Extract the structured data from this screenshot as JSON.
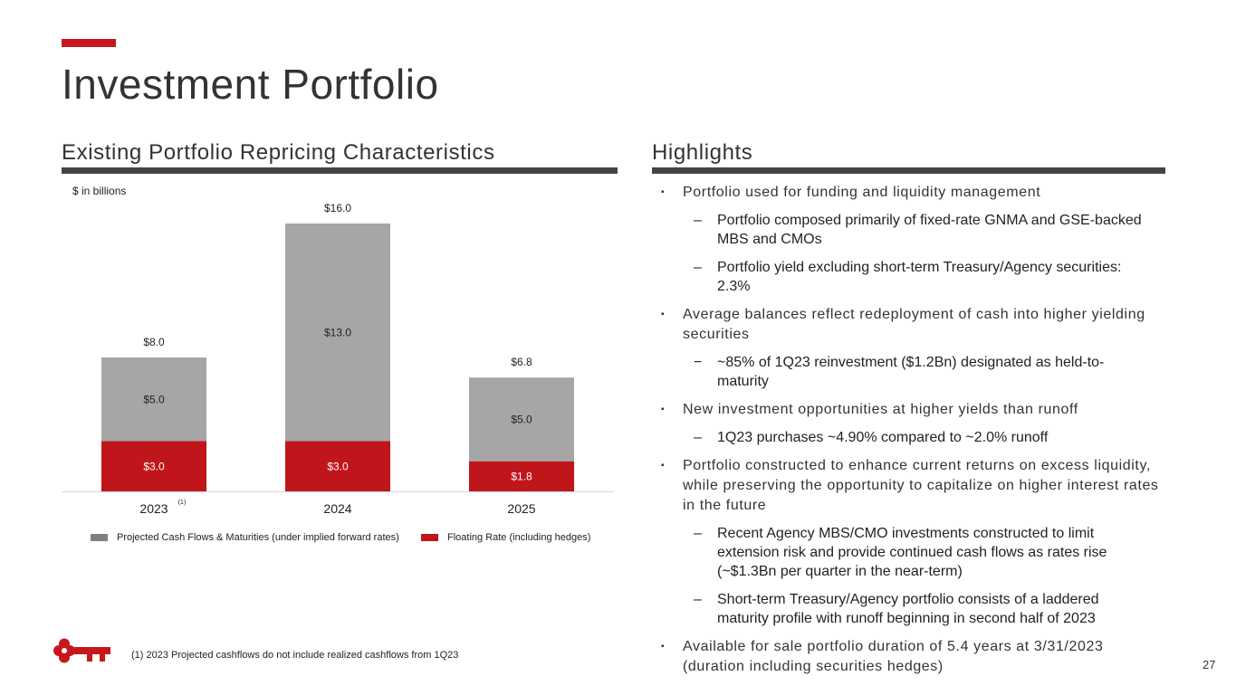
{
  "page": {
    "title": "Investment Portfolio",
    "page_number": "27",
    "footnote": "(1) 2023 Projected cashflows do not include realized cashflows from 1Q23",
    "accent_color": "#c8161d"
  },
  "chart_section": {
    "title": "Existing Portfolio Repricing Characteristics",
    "units": "$ in billions"
  },
  "chart_data": {
    "type": "bar",
    "stacked": true,
    "categories": [
      "2023",
      "2024",
      "2025"
    ],
    "category_footnotes": [
      "(1)",
      "",
      ""
    ],
    "series": [
      {
        "name": "Floating Rate (including hedges)",
        "color": "#c0161b",
        "values": [
          3.0,
          3.0,
          1.8
        ],
        "labels": [
          "$3.0",
          "$3.0",
          "$1.8"
        ]
      },
      {
        "name": "Projected Cash Flows & Maturities (under implied forward rates)",
        "color": "#a6a6a6",
        "values": [
          5.0,
          13.0,
          5.0
        ],
        "labels": [
          "$5.0",
          "$13.0",
          "$5.0"
        ]
      }
    ],
    "totals": [
      8.0,
      16.0,
      6.8
    ],
    "total_labels": [
      "$8.0",
      "$16.0",
      "$6.8"
    ],
    "ylim": [
      0,
      16
    ],
    "legend": [
      {
        "label": "Projected Cash Flows & Maturities (under implied forward rates)",
        "color": "#808080"
      },
      {
        "label": "Floating Rate (including hedges)",
        "color": "#c0161b"
      }
    ]
  },
  "highlights": {
    "title": "Highlights",
    "items": [
      {
        "text": "Portfolio used for funding and liquidity management",
        "subs": [
          "Portfolio composed primarily of fixed-rate GNMA and GSE-backed MBS and CMOs",
          "Portfolio yield excluding short-term Treasury/Agency securities: 2.3%"
        ]
      },
      {
        "text": "Average balances reflect redeployment of cash into higher yielding securities",
        "subs": [
          "~85% of 1Q23 reinvestment ($1.2Bn) designated as held-to-maturity"
        ]
      },
      {
        "text": "New investment opportunities at higher yields than runoff",
        "subs": [
          "1Q23 purchases ~4.90% compared to ~2.0% runoff"
        ]
      },
      {
        "text": "Portfolio constructed to enhance current returns on excess liquidity, while preserving the opportunity to capitalize on higher interest rates in the future",
        "subs": [
          "Recent Agency MBS/CMO investments constructed to limit extension risk and provide continued cash flows as rates rise (~$1.3Bn per quarter in the near-term)",
          "Short-term Treasury/Agency portfolio consists of a laddered maturity profile with runoff beginning in second half of 2023"
        ]
      },
      {
        "text": "Available for sale portfolio duration of 5.4 years at 3/31/2023 (duration including securities hedges)",
        "subs": []
      }
    ]
  },
  "logo": {
    "icon": "key-icon",
    "color": "#c8161d"
  }
}
